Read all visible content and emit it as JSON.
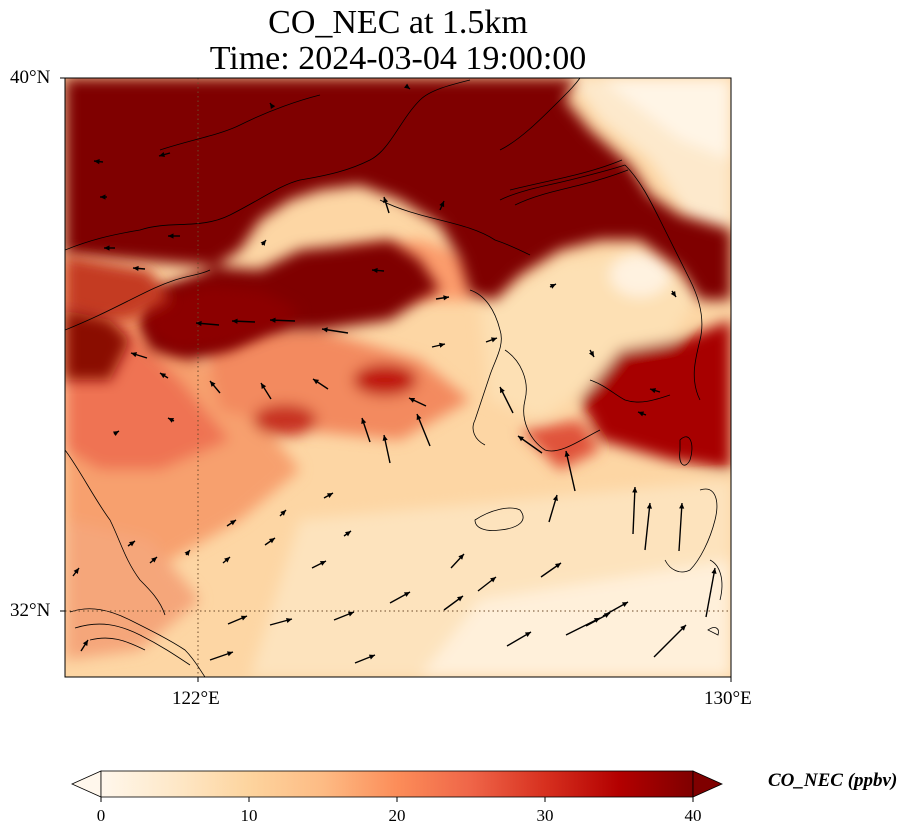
{
  "map": {
    "title_line1": "CO_NEC at 1.5km",
    "title_line2": "Time: 2024-03-04 19:00:00",
    "variable": "CO_NEC",
    "level": "1.5km",
    "time": "2024-03-04 19:00:00",
    "lat_labels": [
      "40°N",
      "32°N"
    ],
    "lon_labels": [
      "122°E",
      "130°E"
    ],
    "extent": {
      "lon_min": 119.9,
      "lon_max": 130.0,
      "lat_min": 31.0,
      "lat_max": 40.0
    },
    "gridlines": {
      "lons": [
        122
      ],
      "lats": [
        32
      ],
      "style": "dotted"
    },
    "features": [
      "coastlines",
      "wind-vectors"
    ]
  },
  "colorbar": {
    "label": "CO_NEC (ppbv)",
    "ticks": [
      "0",
      "10",
      "20",
      "30",
      "40"
    ],
    "min": 0,
    "max": 40,
    "colormap": "OrRd",
    "extend": "both",
    "colors": [
      "#fff7ec",
      "#fee8c8",
      "#fdd49e",
      "#fdbb84",
      "#fc8d59",
      "#ef6548",
      "#d7301f",
      "#b30000",
      "#7f0000"
    ]
  }
}
